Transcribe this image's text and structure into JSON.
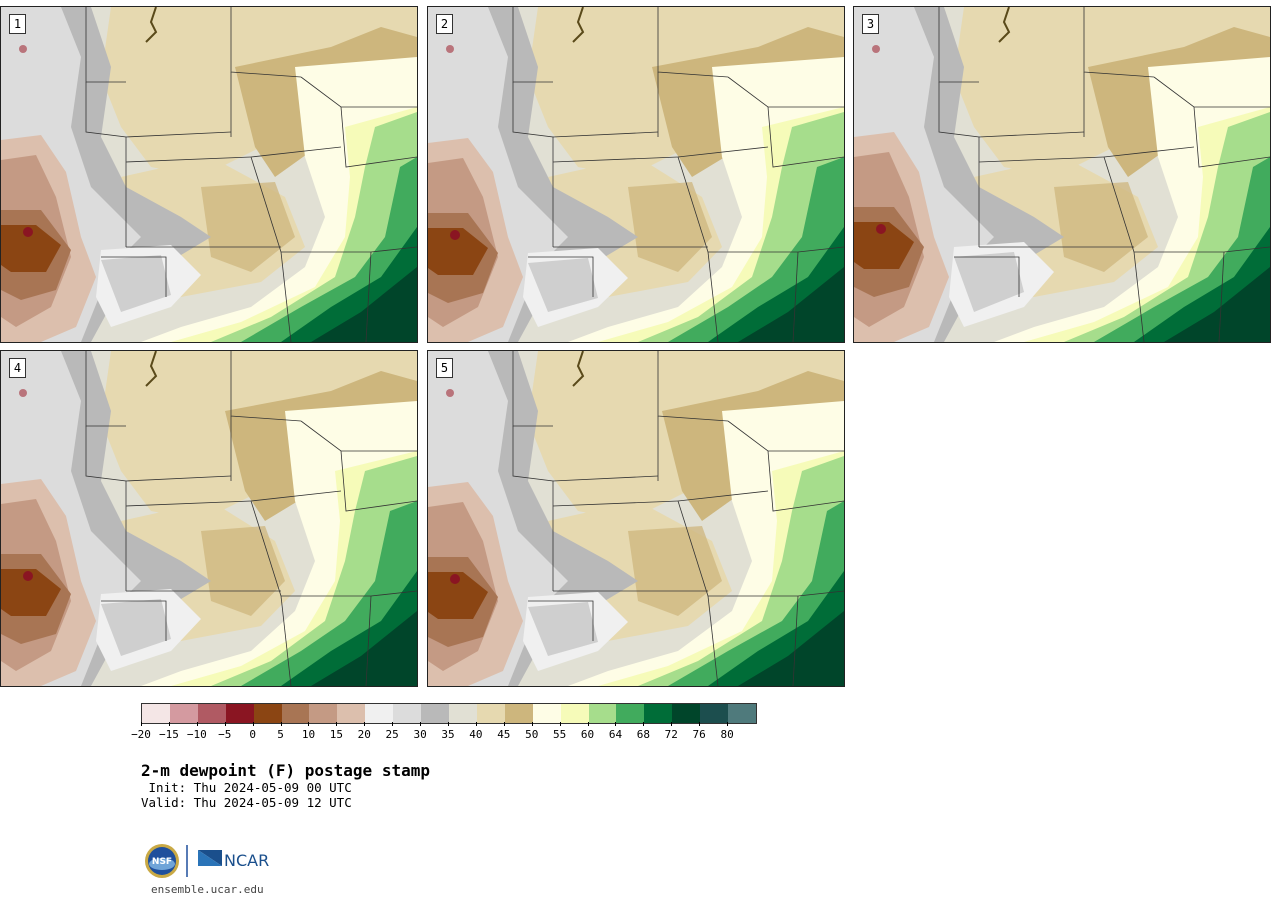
{
  "panels": [
    {
      "id": "p1",
      "member": "1",
      "variant": 1
    },
    {
      "id": "p2",
      "member": "2",
      "variant": 2
    },
    {
      "id": "p3",
      "member": "3",
      "variant": 3
    },
    {
      "id": "p4",
      "member": "4",
      "variant": 4
    },
    {
      "id": "p5",
      "member": "5",
      "variant": 5
    }
  ],
  "colorbar": {
    "colors": [
      "#f4e6e6",
      "#d49aa0",
      "#b05a63",
      "#8a1522",
      "#8b4513",
      "#a87554",
      "#c49a84",
      "#dcbfad",
      "#f0f0f0",
      "#dcdcdc",
      "#b9b9b9",
      "#e1e0d4",
      "#e6d9b0",
      "#cdb67d",
      "#fefde6",
      "#f6fbb9",
      "#a6dd8c",
      "#41ab5d",
      "#006d38",
      "#00452a",
      "#1c4e4e",
      "#4f7a7c"
    ],
    "tick_labels": [
      "-20",
      "-15",
      "-10",
      "-5",
      "0",
      "5",
      "10",
      "15",
      "20",
      "25",
      "30",
      "35",
      "40",
      "45",
      "50",
      "55",
      "60",
      "64",
      "68",
      "72",
      "76",
      "80"
    ]
  },
  "title": "2-m dewpoint (F) postage stamp",
  "init": " Init: Thu 2024-05-09 00 UTC",
  "valid": "Valid: Thu 2024-05-09 12 UTC",
  "logo": {
    "nsf_text": "NSF",
    "ncar_text": "NCAR"
  },
  "website": "ensemble.ucar.edu"
}
